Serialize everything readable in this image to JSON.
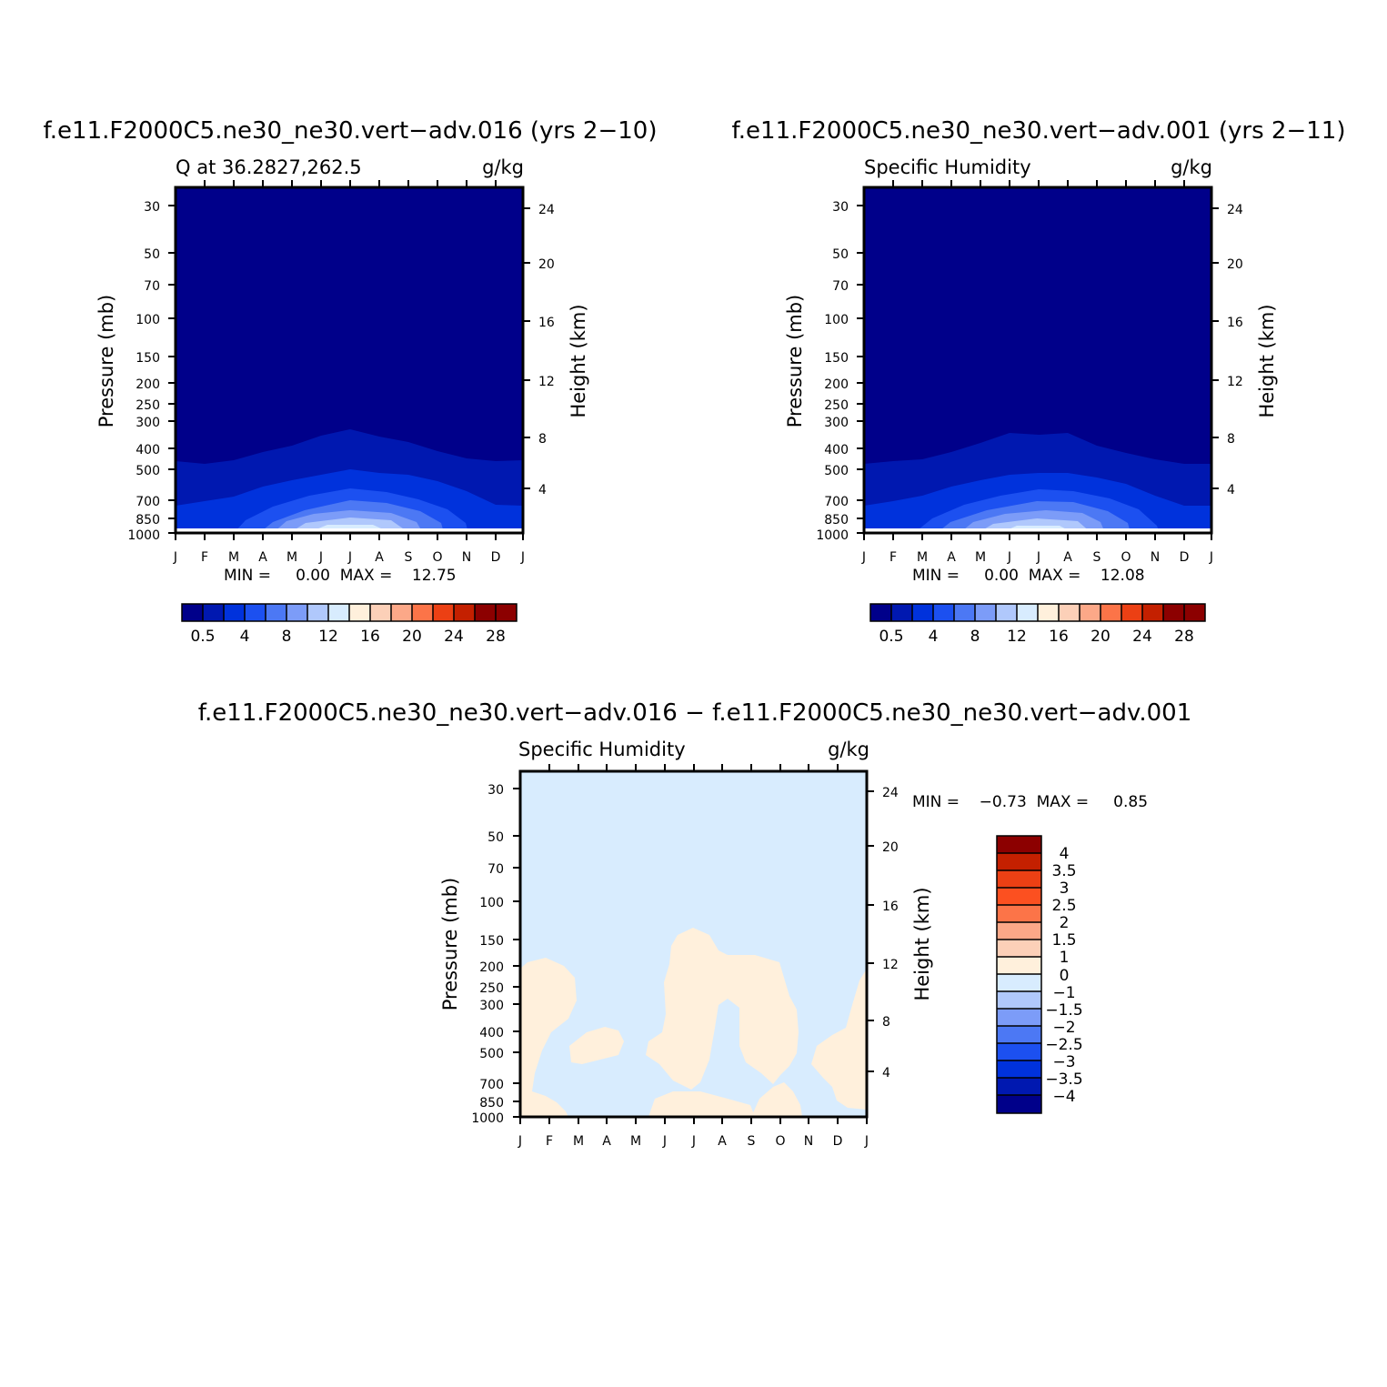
{
  "chart_data": [
    {
      "type": "contour",
      "title": "f.e11.F2000C5.ne30_ne30.vert−adv.016 (yrs 2−10)",
      "left_label": "Q at 36.2827,262.5",
      "right_label": "g/kg",
      "ylabel": "Pressure (mb)",
      "ylabel_right": "Height (km)",
      "x_ticks": [
        "J",
        "F",
        "M",
        "A",
        "M",
        "J",
        "J",
        "A",
        "S",
        "O",
        "N",
        "D",
        "J"
      ],
      "p_ticks": [
        30,
        50,
        70,
        100,
        150,
        200,
        250,
        300,
        400,
        500,
        700,
        850,
        1000
      ],
      "z_ticks": [
        24,
        20,
        16,
        12,
        8,
        4
      ],
      "minmax_text": "MIN =     0.00  MAX =    12.75",
      "levels": [
        0.5,
        2,
        4,
        6,
        8,
        10,
        12,
        14,
        16,
        18,
        20,
        22,
        24,
        26,
        28
      ],
      "colorbar_labels": [
        "0.5",
        "4",
        "8",
        "12",
        "16",
        "20",
        "24",
        "28"
      ],
      "colors": [
        "#00008a",
        "#0018b0",
        "#0032dc",
        "#1c50f0",
        "#4c78f4",
        "#7c9cf8",
        "#b0c8fc",
        "#d8ecfe",
        "#fff0dc",
        "#fcd0b8",
        "#fca888",
        "#fc7448",
        "#ec4014",
        "#c42000",
        "#8c0000"
      ],
      "min": 0.0,
      "max": 12.75
    },
    {
      "type": "contour",
      "title": "f.e11.F2000C5.ne30_ne30.vert−adv.001 (yrs 2−11)",
      "left_label": "Specific Humidity",
      "right_label": "g/kg",
      "ylabel": "Pressure (mb)",
      "ylabel_right": "Height (km)",
      "x_ticks": [
        "J",
        "F",
        "M",
        "A",
        "M",
        "J",
        "J",
        "A",
        "S",
        "O",
        "N",
        "D",
        "J"
      ],
      "p_ticks": [
        30,
        50,
        70,
        100,
        150,
        200,
        250,
        300,
        400,
        500,
        700,
        850,
        1000
      ],
      "z_ticks": [
        24,
        20,
        16,
        12,
        8,
        4
      ],
      "minmax_text": "MIN =     0.00  MAX =    12.08",
      "colorbar_labels": [
        "0.5",
        "4",
        "8",
        "12",
        "16",
        "20",
        "24",
        "28"
      ],
      "colors": [
        "#00008a",
        "#0018b0",
        "#0032dc",
        "#1c50f0",
        "#4c78f4",
        "#7c9cf8",
        "#b0c8fc",
        "#d8ecfe",
        "#fff0dc",
        "#fcd0b8",
        "#fca888",
        "#fc7448",
        "#ec4014",
        "#c42000",
        "#8c0000"
      ],
      "min": 0.0,
      "max": 12.08
    },
    {
      "type": "contour",
      "title": "f.e11.F2000C5.ne30_ne30.vert−adv.016 − f.e11.F2000C5.ne30_ne30.vert−adv.001",
      "left_label": "Specific Humidity",
      "right_label": "g/kg",
      "ylabel": "Pressure (mb)",
      "ylabel_right": "Height (km)",
      "x_ticks": [
        "J",
        "F",
        "M",
        "A",
        "M",
        "J",
        "J",
        "A",
        "S",
        "O",
        "N",
        "D",
        "J"
      ],
      "p_ticks": [
        30,
        50,
        70,
        100,
        150,
        200,
        250,
        300,
        400,
        500,
        700,
        850,
        1000
      ],
      "z_ticks": [
        24,
        20,
        16,
        12,
        8,
        4
      ],
      "minmax_text": "MIN =    −0.73  MAX =     0.85",
      "colorbar_labels": [
        "4",
        "3.5",
        "3",
        "2.5",
        "2",
        "1.5",
        "1",
        "0",
        "−1",
        "−1.5",
        "−2",
        "−2.5",
        "−3",
        "−3.5",
        "−4"
      ],
      "colors_top_to_bottom": [
        "#8c0000",
        "#c42000",
        "#ec4014",
        "#fc5020",
        "#fc7448",
        "#fca888",
        "#fcd0b8",
        "#fff0dc",
        "#d8ecfe",
        "#b0c8fc",
        "#7c9cf8",
        "#4c78f4",
        "#1c50f0",
        "#0032dc",
        "#0018b0",
        "#00008a"
      ],
      "min": -0.73,
      "max": 0.85
    }
  ]
}
